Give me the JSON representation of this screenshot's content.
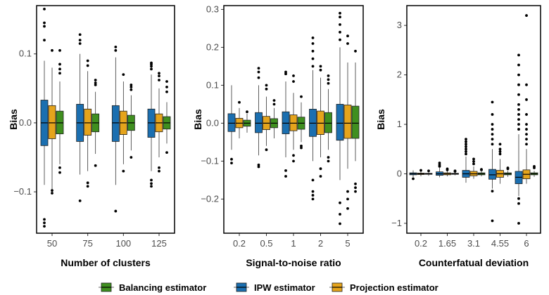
{
  "colors": {
    "Balancing": "#3f8f1f",
    "IPW": "#1b6fb0",
    "Projection": "#e5a41c"
  },
  "legend": {
    "entries": [
      {
        "key": "Balancing",
        "label": "Balancing estimator"
      },
      {
        "key": "IPW",
        "label": "IPW estimator"
      },
      {
        "key": "Projection",
        "label": "Projection estimator"
      }
    ]
  },
  "chart_data": [
    {
      "type": "box",
      "xlabel": "Number of clusters",
      "ylabel": "Bias",
      "categories": [
        "50",
        "75",
        "100",
        "125"
      ],
      "ylim": [
        -0.16,
        0.17
      ],
      "yticks": [
        -0.1,
        0.0,
        0.1
      ],
      "yticklabels": [
        "−0.1",
        "0.0",
        "0.1"
      ],
      "series": [
        {
          "name": "IPW",
          "boxes": [
            {
              "low": -0.09,
              "q1": -0.033,
              "median": 0.0,
              "q3": 0.033,
              "high": 0.09,
              "outliers": [
                0.165,
                0.145,
                0.14,
                0.12,
                -0.14,
                -0.145,
                -0.15
              ]
            },
            {
              "low": -0.075,
              "q1": -0.027,
              "median": 0.0,
              "q3": 0.027,
              "high": 0.1,
              "outliers": [
                0.128,
                0.12,
                0.115,
                -0.113
              ]
            },
            {
              "low": -0.09,
              "q1": -0.027,
              "median": 0.0,
              "q3": 0.025,
              "high": 0.095,
              "outliers": [
                0.11,
                0.105,
                -0.128
              ]
            },
            {
              "low": -0.07,
              "q1": -0.021,
              "median": 0.0,
              "q3": 0.02,
              "high": 0.07,
              "outliers": [
                0.087,
                0.085,
                0.082,
                0.078,
                -0.083,
                -0.088,
                -0.092
              ]
            }
          ]
        },
        {
          "name": "Projection",
          "boxes": [
            {
              "low": -0.1,
              "q1": -0.023,
              "median": 0.0,
              "q3": 0.025,
              "high": 0.08,
              "outliers": [
                0.105,
                -0.098,
                -0.102
              ]
            },
            {
              "low": -0.07,
              "q1": -0.018,
              "median": 0.0,
              "q3": 0.02,
              "high": 0.075,
              "outliers": [
                0.09,
                0.083,
                -0.087,
                -0.092
              ]
            },
            {
              "low": -0.06,
              "q1": -0.017,
              "median": 0.0,
              "q3": 0.017,
              "high": 0.06,
              "outliers": [
                0.07,
                -0.07
              ]
            },
            {
              "low": -0.05,
              "q1": -0.013,
              "median": 0.0,
              "q3": 0.013,
              "high": 0.05,
              "outliers": [
                0.072,
                0.068,
                0.062,
                -0.065,
                -0.07
              ]
            }
          ]
        },
        {
          "name": "Balancing",
          "boxes": [
            {
              "low": -0.06,
              "q1": -0.016,
              "median": 0.0,
              "q3": 0.017,
              "high": 0.06,
              "outliers": [
                0.105,
                0.085,
                0.078,
                0.072,
                -0.065,
                -0.072
              ]
            },
            {
              "low": -0.045,
              "q1": -0.013,
              "median": 0.0,
              "q3": 0.013,
              "high": 0.045,
              "outliers": [
                0.062,
                0.058,
                0.055,
                -0.062
              ]
            },
            {
              "low": -0.04,
              "q1": -0.011,
              "median": 0.0,
              "q3": 0.011,
              "high": 0.04,
              "outliers": [
                0.055,
                0.052,
                0.048,
                -0.05
              ]
            },
            {
              "low": -0.03,
              "q1": -0.009,
              "median": 0.0,
              "q3": 0.009,
              "high": 0.03,
              "outliers": [
                0.06,
                0.052,
                0.045,
                -0.043
              ]
            }
          ]
        }
      ]
    },
    {
      "type": "box",
      "xlabel": "Signal-to-noise ratio",
      "ylabel": "Bias",
      "categories": [
        "0.2",
        "0.5",
        "1",
        "2",
        "5"
      ],
      "ylim": [
        -0.29,
        0.31
      ],
      "yticks": [
        -0.2,
        -0.1,
        0.0,
        0.1,
        0.2,
        0.3
      ],
      "yticklabels": [
        "−0.2",
        "−0.1",
        "0.0",
        "0.1",
        "0.2",
        "0.3"
      ],
      "series": [
        {
          "name": "IPW",
          "boxes": [
            {
              "low": -0.07,
              "q1": -0.022,
              "median": 0.0,
              "q3": 0.025,
              "high": 0.1,
              "outliers": [
                -0.095,
                -0.105
              ]
            },
            {
              "low": -0.085,
              "q1": -0.025,
              "median": 0.0,
              "q3": 0.028,
              "high": 0.1,
              "outliers": [
                0.145,
                0.135,
                0.12,
                -0.11,
                -0.115
              ]
            },
            {
              "low": -0.09,
              "q1": -0.028,
              "median": 0.0,
              "q3": 0.03,
              "high": 0.11,
              "outliers": [
                0.135,
                0.13,
                -0.125,
                -0.14
              ]
            },
            {
              "low": -0.1,
              "q1": -0.035,
              "median": 0.0,
              "q3": 0.037,
              "high": 0.14,
              "outliers": [
                0.225,
                0.21,
                0.19,
                0.17,
                0.15,
                -0.15,
                -0.18,
                -0.19,
                -0.2
              ]
            },
            {
              "low": -0.15,
              "q1": -0.045,
              "median": 0.0,
              "q3": 0.05,
              "high": 0.2,
              "outliers": [
                0.29,
                0.28,
                0.26,
                0.24,
                0.22,
                -0.21,
                -0.24,
                -0.265
              ]
            }
          ]
        },
        {
          "name": "Projection",
          "boxes": [
            {
              "low": -0.04,
              "q1": -0.012,
              "median": 0.0,
              "q3": 0.013,
              "high": 0.04,
              "outliers": [
                0.055
              ]
            },
            {
              "low": -0.06,
              "q1": -0.017,
              "median": 0.0,
              "q3": 0.018,
              "high": 0.07,
              "outliers": [
                0.1,
                0.09,
                -0.07
              ]
            },
            {
              "low": -0.07,
              "q1": -0.02,
              "median": 0.0,
              "q3": 0.022,
              "high": 0.08,
              "outliers": [
                0.125,
                0.11,
                -0.085,
                -0.1
              ]
            },
            {
              "low": -0.09,
              "q1": -0.03,
              "median": 0.0,
              "q3": 0.032,
              "high": 0.12,
              "outliers": [
                0.15,
                0.14,
                -0.12,
                -0.14
              ]
            },
            {
              "low": -0.12,
              "q1": -0.04,
              "median": 0.0,
              "q3": 0.048,
              "high": 0.16,
              "outliers": [
                0.23,
                0.21,
                -0.18,
                -0.2,
                -0.225
              ]
            }
          ]
        },
        {
          "name": "Balancing",
          "boxes": [
            {
              "low": -0.025,
              "q1": -0.008,
              "median": 0.0,
              "q3": 0.008,
              "high": 0.025,
              "outliers": [
                0.03
              ]
            },
            {
              "low": -0.04,
              "q1": -0.012,
              "median": 0.0,
              "q3": 0.012,
              "high": 0.04,
              "outliers": [
                0.06,
                0.05
              ]
            },
            {
              "low": -0.05,
              "q1": -0.016,
              "median": 0.0,
              "q3": 0.016,
              "high": 0.055,
              "outliers": [
                0.07,
                -0.06,
                -0.065
              ]
            },
            {
              "low": -0.07,
              "q1": -0.025,
              "median": 0.0,
              "q3": 0.028,
              "high": 0.09,
              "outliers": [
                0.125,
                0.115,
                0.105,
                -0.09,
                -0.1
              ]
            },
            {
              "low": -0.1,
              "q1": -0.04,
              "median": 0.0,
              "q3": 0.045,
              "high": 0.16,
              "outliers": [
                0.19,
                -0.16,
                -0.17,
                -0.18
              ]
            }
          ]
        }
      ]
    },
    {
      "type": "box",
      "xlabel": "Counterfatual deviation",
      "ylabel": "Bias",
      "categories": [
        "0.2",
        "1.65",
        "3.1",
        "4.55",
        "6"
      ],
      "ylim": [
        -1.2,
        3.4
      ],
      "yticks": [
        -1,
        0,
        1,
        2,
        3
      ],
      "yticklabels": [
        "−1",
        "0",
        "1",
        "2",
        "3"
      ],
      "series": [
        {
          "name": "IPW",
          "boxes": [
            {
              "low": -0.07,
              "q1": -0.02,
              "median": 0.0,
              "q3": 0.02,
              "high": 0.07,
              "outliers": [
                -0.1
              ]
            },
            {
              "low": -0.07,
              "q1": -0.03,
              "median": 0.0,
              "q3": 0.04,
              "high": 0.12,
              "outliers": [
                0.22,
                0.18,
                0.15
              ]
            },
            {
              "low": -0.18,
              "q1": -0.07,
              "median": 0.0,
              "q3": 0.07,
              "high": 0.35,
              "outliers": [
                0.7,
                0.65,
                0.6,
                0.55,
                0.5,
                0.45,
                0.4
              ]
            },
            {
              "low": -0.3,
              "q1": -0.11,
              "median": -0.02,
              "q3": 0.09,
              "high": 0.5,
              "outliers": [
                1.45,
                1.2,
                1.0,
                0.9,
                0.8,
                0.7,
                0.6,
                -0.35,
                -0.95
              ]
            },
            {
              "low": -0.45,
              "q1": -0.2,
              "median": -0.07,
              "q3": 0.05,
              "high": 0.8,
              "outliers": [
                2.4,
                2.2,
                2.0,
                1.8,
                1.6,
                1.4,
                1.3,
                1.2,
                1.1,
                1.0,
                0.9,
                -0.5,
                -0.6,
                -1.0
              ]
            }
          ]
        },
        {
          "name": "Projection",
          "boxes": [
            {
              "low": -0.05,
              "q1": -0.015,
              "median": 0.0,
              "q3": 0.015,
              "high": 0.05,
              "outliers": [
                0.07
              ]
            },
            {
              "low": -0.05,
              "q1": -0.02,
              "median": 0.0,
              "q3": 0.02,
              "high": 0.06,
              "outliers": [
                0.1,
                0.08
              ]
            },
            {
              "low": -0.1,
              "q1": -0.04,
              "median": 0.0,
              "q3": 0.05,
              "high": 0.15,
              "outliers": [
                0.3,
                0.25,
                0.2
              ]
            },
            {
              "low": -0.2,
              "q1": -0.07,
              "median": 0.0,
              "q3": 0.07,
              "high": 0.3,
              "outliers": [
                0.6,
                0.5,
                0.45,
                0.4
              ]
            },
            {
              "low": -0.2,
              "q1": -0.1,
              "median": -0.01,
              "q3": 0.08,
              "high": 0.5,
              "outliers": [
                3.2,
                1.8,
                1.5,
                1.2,
                1.0,
                0.9,
                0.8,
                0.7,
                0.6
              ]
            }
          ]
        },
        {
          "name": "Balancing",
          "boxes": [
            {
              "low": -0.04,
              "q1": -0.01,
              "median": 0.0,
              "q3": 0.01,
              "high": 0.04,
              "outliers": [
                0.06
              ]
            },
            {
              "low": -0.03,
              "q1": -0.01,
              "median": 0.0,
              "q3": 0.01,
              "high": 0.03,
              "outliers": [
                0.06,
                0.05
              ]
            },
            {
              "low": -0.05,
              "q1": -0.02,
              "median": 0.0,
              "q3": 0.02,
              "high": 0.05,
              "outliers": [
                0.09,
                0.08
              ]
            },
            {
              "low": -0.06,
              "q1": -0.02,
              "median": 0.0,
              "q3": 0.02,
              "high": 0.06,
              "outliers": [
                0.12,
                0.1
              ]
            },
            {
              "low": -0.06,
              "q1": -0.02,
              "median": 0.0,
              "q3": 0.02,
              "high": 0.06,
              "outliers": [
                0.15,
                0.12
              ]
            }
          ]
        }
      ]
    }
  ]
}
